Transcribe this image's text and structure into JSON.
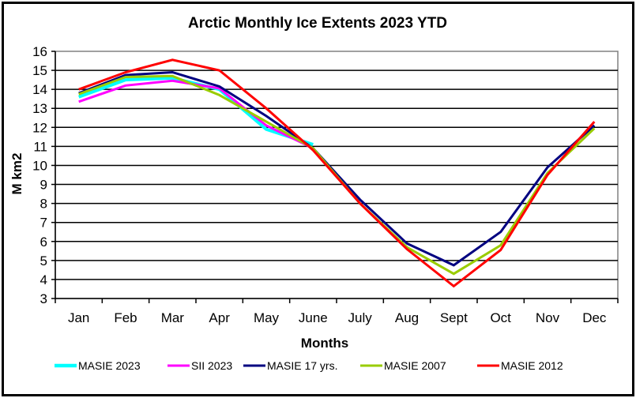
{
  "chart_data": {
    "type": "line",
    "title": "Arctic Monthly Ice Extents 2023 YTD",
    "xlabel": "Months",
    "ylabel": "M km2",
    "ylim": [
      3,
      16
    ],
    "yticks": [
      "3",
      "4",
      "5",
      "6",
      "7",
      "8",
      "9",
      "10",
      "11",
      "12",
      "13",
      "14",
      "15",
      "16"
    ],
    "grid": true,
    "legend_position": "bottom",
    "categories": [
      "Jan",
      "Feb",
      "Mar",
      "Apr",
      "May",
      "June",
      "July",
      "Aug",
      "Sept",
      "Oct",
      "Nov",
      "Dec"
    ],
    "series": [
      {
        "name": "MASIE 2023",
        "color": "#00ffff",
        "values": [
          13.6,
          14.5,
          14.6,
          14.0,
          11.9,
          11.1,
          null,
          null,
          null,
          null,
          null,
          null
        ]
      },
      {
        "name": "SII 2023",
        "color": "#ff00ff",
        "values": [
          13.35,
          14.2,
          14.45,
          14.05,
          12.1,
          10.9,
          null,
          null,
          null,
          null,
          null,
          null
        ]
      },
      {
        "name": "MASIE 17 yrs.",
        "color": "#000080",
        "values": [
          13.8,
          14.75,
          14.9,
          14.15,
          12.6,
          10.9,
          8.2,
          5.9,
          4.75,
          6.5,
          9.9,
          12.1
        ]
      },
      {
        "name": "MASIE 2007",
        "color": "#99cc00",
        "values": [
          13.75,
          14.65,
          14.7,
          13.7,
          12.3,
          10.9,
          8.0,
          5.7,
          4.3,
          5.8,
          9.6,
          11.95
        ]
      },
      {
        "name": "MASIE 2012",
        "color": "#ff0000",
        "values": [
          14.0,
          14.9,
          15.55,
          15.0,
          13.0,
          10.8,
          8.0,
          5.6,
          3.65,
          5.55,
          9.5,
          12.3
        ]
      }
    ]
  }
}
